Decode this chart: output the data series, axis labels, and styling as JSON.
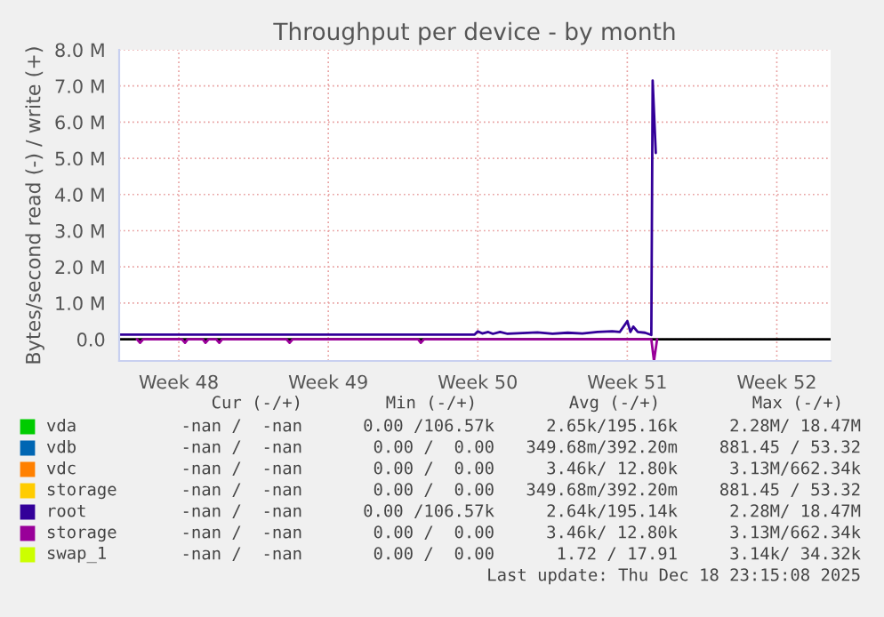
{
  "chart_data": {
    "type": "line",
    "title": "Throughput per device - by month",
    "ylabel": "Bytes/second read (-) / write (+)",
    "xlim": [
      "2025-11-23T17:00",
      "2025-12-27T00:30"
    ],
    "xticks": [
      {
        "value": "2025-11-26T12:00",
        "label": "Week 48"
      },
      {
        "value": "2025-12-03T12:00",
        "label": "Week 49"
      },
      {
        "value": "2025-12-10T12:00",
        "label": "Week 50"
      },
      {
        "value": "2025-12-17T12:00",
        "label": "Week 51"
      },
      {
        "value": "2025-12-24T12:00",
        "label": "Week 52"
      }
    ],
    "ylim": [
      -600000,
      8000000
    ],
    "yticks": [
      {
        "value": 0,
        "label": "0.0"
      },
      {
        "value": 1000000,
        "label": "1.0 M"
      },
      {
        "value": 2000000,
        "label": "2.0 M"
      },
      {
        "value": 3000000,
        "label": "3.0 M"
      },
      {
        "value": 4000000,
        "label": "4.0 M"
      },
      {
        "value": 5000000,
        "label": "5.0 M"
      },
      {
        "value": 6000000,
        "label": "6.0 M"
      },
      {
        "value": 7000000,
        "label": "7.0 M"
      },
      {
        "value": 8000000,
        "label": "8.0 M"
      }
    ],
    "grid": true,
    "legend": "bottom",
    "x": [
      "2025-11-23T17:00",
      "2025-12-10T08:30",
      "2025-12-10T12:00",
      "2025-12-10T17:00",
      "2025-12-10T23:45",
      "2025-12-11T05:00",
      "2025-12-11T13:00",
      "2025-12-11T21:30",
      "2025-12-12T14:30",
      "2025-12-13T07:00",
      "2025-12-14T00:00",
      "2025-12-14T17:00",
      "2025-12-15T09:30",
      "2025-12-16T02:30",
      "2025-12-16T19:00",
      "2025-12-17T03:30",
      "2025-12-17T12:00",
      "2025-12-17T15:30",
      "2025-12-17T18:45",
      "2025-12-17T23:45",
      "2025-12-18T08:00",
      "2025-12-18T15:00",
      "2025-12-18T16:30",
      "2025-12-18T20:00"
    ],
    "series": [
      {
        "name": "vda",
        "color": "#00cc00",
        "values": [
          null,
          null,
          null,
          null,
          null,
          null,
          null,
          null,
          null,
          null,
          null,
          null,
          null,
          null,
          null,
          null,
          null,
          null,
          null,
          null,
          null,
          null,
          null,
          null
        ]
      },
      {
        "name": "vdb",
        "color": "#0066b3",
        "values": [
          null,
          null,
          null,
          null,
          null,
          null,
          null,
          null,
          null,
          null,
          null,
          null,
          null,
          null,
          null,
          null,
          null,
          null,
          null,
          null,
          null,
          null,
          null,
          null
        ]
      },
      {
        "name": "vdc",
        "color": "#ff8000",
        "values": [
          null,
          null,
          null,
          null,
          null,
          null,
          null,
          null,
          null,
          null,
          null,
          null,
          null,
          null,
          null,
          null,
          null,
          null,
          null,
          null,
          null,
          null,
          null,
          null
        ]
      },
      {
        "name": "storage",
        "color": "#ffcc00",
        "values": [
          null,
          null,
          null,
          null,
          null,
          null,
          null,
          null,
          null,
          null,
          null,
          null,
          null,
          null,
          null,
          null,
          null,
          null,
          null,
          null,
          null,
          null,
          null,
          null
        ]
      },
      {
        "name": "root",
        "color": "#330099",
        "values": [
          130000,
          130000,
          220000,
          160000,
          200000,
          150000,
          200000,
          150000,
          170000,
          190000,
          150000,
          180000,
          160000,
          200000,
          220000,
          200000,
          500000,
          200000,
          350000,
          200000,
          180000,
          120000,
          7150000,
          5150000
        ]
      },
      {
        "name": "storage",
        "color": "#990099",
        "x": [
          "2025-11-24T13:00",
          "2025-11-24T16:30",
          "2025-11-24T20:00",
          "2025-11-26T15:30",
          "2025-11-26T19:00",
          "2025-11-26T22:00",
          "2025-11-27T15:00",
          "2025-11-27T18:00",
          "2025-11-27T21:30",
          "2025-11-28T06:00",
          "2025-11-28T09:30",
          "2025-11-28T12:45",
          "2025-12-01T13:00",
          "2025-12-01T16:30",
          "2025-12-01T20:00",
          "2025-12-07T17:00",
          "2025-12-07T20:00",
          "2025-12-07T23:30",
          "2025-12-18T15:00",
          "2025-12-18T18:00",
          "2025-12-18T21:30"
        ],
        "values": [
          0,
          -100000,
          0,
          0,
          -100000,
          0,
          0,
          -100000,
          0,
          0,
          -100000,
          0,
          0,
          -100000,
          0,
          0,
          -100000,
          0,
          0,
          -600000,
          0
        ]
      },
      {
        "name": "swap_1",
        "color": "#ccff00",
        "values": [
          null,
          null,
          null,
          null,
          null,
          null,
          null,
          null,
          null,
          null,
          null,
          null,
          null,
          null,
          null,
          null,
          null,
          null,
          null,
          null,
          null,
          null,
          null,
          null
        ]
      }
    ],
    "annotations": [
      "Cur (-/+)",
      "Min (-/+)",
      "Avg (-/+)",
      "Max (-/+)",
      "-nan /  -nan",
      "0.00 /106.57k",
      "2.65k/195.16k",
      "2.28M/ 18.47M",
      "-nan /  -nan",
      "0.00 /  0.00",
      "349.68m/392.20m",
      "881.45 / 53.32",
      "-nan /  -nan",
      "0.00 /  0.00",
      "3.46k/ 12.80k",
      "3.13M/662.34k",
      "-nan /  -nan",
      "0.00 /  0.00",
      "349.68m/392.20m",
      "881.45 / 53.32",
      "-nan /  -nan",
      "0.00 /106.57k",
      "2.64k/195.14k",
      "2.28M/ 18.47M",
      "-nan /  -nan",
      "0.00 /  0.00",
      "3.46k/ 12.80k",
      "3.13M/662.34k",
      "-nan /  -nan",
      "0.00 /  0.00",
      "1.72 / 17.91",
      "3.14k/ 34.32k",
      "Last update: Thu Dec 18 23:15:08 2025"
    ]
  }
}
